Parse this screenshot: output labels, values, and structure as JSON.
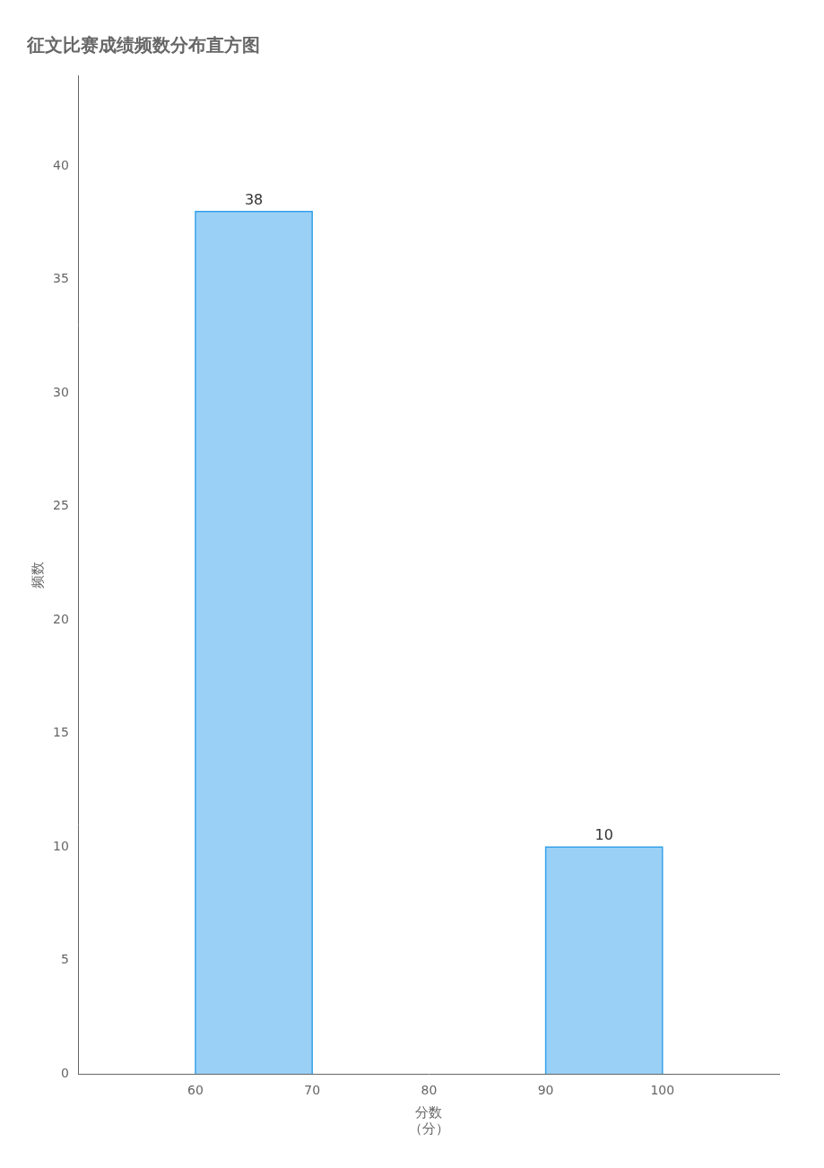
{
  "chart_data": {
    "type": "histogram",
    "title": "征文比赛成绩频数分布直方图",
    "bins": [
      60,
      70,
      80,
      90,
      100
    ],
    "values": [
      38,
      null,
      null,
      10
    ],
    "color": "#36a2eb",
    "xlabel": "分数\n（分）",
    "ylabel": "频数",
    "xlim": [
      50,
      110
    ],
    "xticks": [
      60,
      70,
      80,
      90,
      100
    ],
    "ylim": [
      0,
      44
    ],
    "yticks": [
      0,
      5,
      10,
      15,
      20,
      25,
      30,
      35,
      40
    ],
    "grid": false,
    "data_labels": true
  }
}
